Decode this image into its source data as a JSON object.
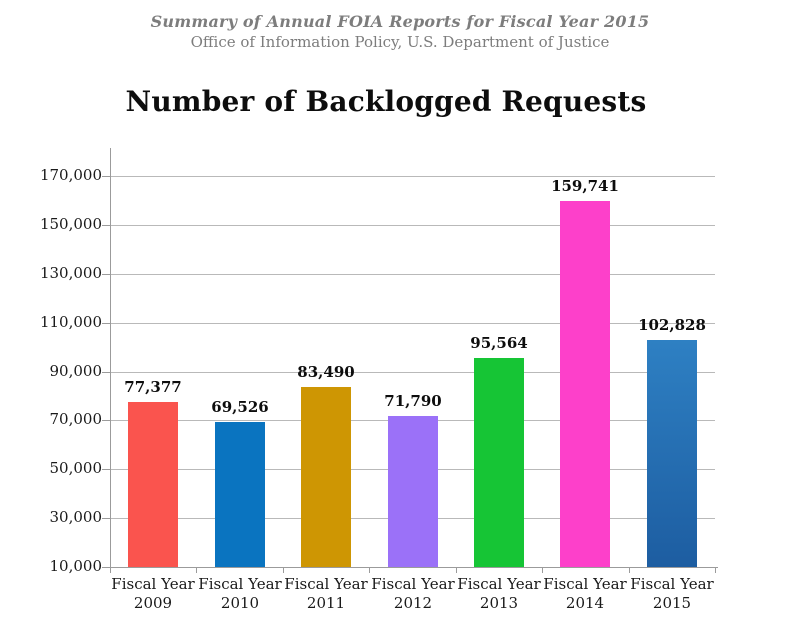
{
  "header": {
    "line1": "Summary of Annual FOIA Reports for Fiscal Year 2015",
    "line2": "Office of Information Policy, U.S. Department of Justice"
  },
  "chart_data": {
    "type": "bar",
    "title": "Number of Backlogged Requests",
    "xlabel": "",
    "ylabel": "",
    "x_label_line1": "Fiscal Year",
    "years": [
      "2009",
      "2010",
      "2011",
      "2012",
      "2013",
      "2014",
      "2015"
    ],
    "categories": [
      "Fiscal Year 2009",
      "Fiscal Year 2010",
      "Fiscal Year 2011",
      "Fiscal Year 2012",
      "Fiscal Year 2013",
      "Fiscal Year 2014",
      "Fiscal Year 2015"
    ],
    "values": [
      77377,
      69526,
      83490,
      71790,
      95564,
      159741,
      102828
    ],
    "value_labels": [
      "77,377",
      "69,526",
      "83,490",
      "71,790",
      "95,564",
      "159,741",
      "102,828"
    ],
    "colors": [
      "#fa544e",
      "#0a74c0",
      "#ce9603",
      "#9b71f8",
      "#16c535",
      "#fd40ca",
      "#2e80c3"
    ],
    "bar7_gradient_bottom": "#1d5da1",
    "ylim": [
      10000,
      170000
    ],
    "ytick_step": 20000,
    "yticks": [
      {
        "value": 10000,
        "label": "10,000"
      },
      {
        "value": 30000,
        "label": "30,000"
      },
      {
        "value": 50000,
        "label": "50,000"
      },
      {
        "value": 70000,
        "label": "70,000"
      },
      {
        "value": 90000,
        "label": "90,000"
      },
      {
        "value": 110000,
        "label": "110,000"
      },
      {
        "value": 130000,
        "label": "130,000"
      },
      {
        "value": 150000,
        "label": "150,000"
      },
      {
        "value": 170000,
        "label": "170,000"
      }
    ],
    "grid": "horizontal",
    "legend": null
  },
  "colors": {
    "grid": "#b9b9b9",
    "axis": "#9b9b9b",
    "header_text": "#7d7d7d",
    "title_text": "#0d0d0d"
  }
}
